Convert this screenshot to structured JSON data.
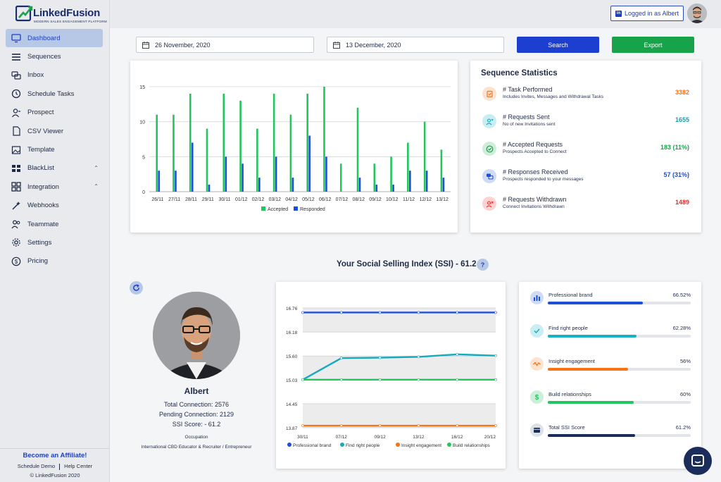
{
  "app": {
    "brand": "LinkedFusion",
    "tagline": "MODERN SALES ENGAGEMENT PLATFORM",
    "logged_in": "Logged in as Albert"
  },
  "sidebar": {
    "items": [
      {
        "label": "Dashboard",
        "icon": "monitor-icon",
        "active": true
      },
      {
        "label": "Sequences",
        "icon": "list-icon"
      },
      {
        "label": "Inbox",
        "icon": "chat-icon"
      },
      {
        "label": "Schedule Tasks",
        "icon": "clock-icon"
      },
      {
        "label": "Prospect",
        "icon": "person-icon"
      },
      {
        "label": "CSV Viewer",
        "icon": "file-icon"
      },
      {
        "label": "Template",
        "icon": "image-icon"
      },
      {
        "label": "BlackList",
        "icon": "blocks-icon",
        "expandable": true
      },
      {
        "label": "Integration",
        "icon": "grid-icon",
        "expandable": true
      },
      {
        "label": "Webhooks",
        "icon": "magic-icon"
      },
      {
        "label": "Teammate",
        "icon": "team-icon"
      },
      {
        "label": "Settings",
        "icon": "gear-icon"
      },
      {
        "label": "Pricing",
        "icon": "dollar-icon"
      }
    ],
    "affiliate": "Become an Affiliate!",
    "schedule_demo": "Schedule Demo",
    "help_center": "Help Center",
    "copyright": "© LinkedFusion 2020"
  },
  "filters": {
    "start_date": "26 November, 2020",
    "end_date": "13 December, 2020",
    "search_label": "Search",
    "export_label": "Export"
  },
  "colors": {
    "accepted": "#22c55e",
    "responded": "#1d4ed8",
    "search_btn": "#1d3fcf",
    "export_btn": "#16a34a"
  },
  "chart_data": [
    {
      "type": "bar",
      "categories": [
        "26/11",
        "27/11",
        "28/11",
        "29/11",
        "30/11",
        "01/12",
        "02/12",
        "03/12",
        "04/12",
        "05/12",
        "06/12",
        "07/12",
        "08/12",
        "09/12",
        "10/12",
        "11/12",
        "12/12",
        "13/12"
      ],
      "series": [
        {
          "name": "Accepted",
          "values": [
            11,
            11,
            14,
            9,
            14,
            13,
            9,
            14,
            11,
            14,
            15,
            4,
            12,
            4,
            5,
            7,
            10,
            6
          ]
        },
        {
          "name": "Responded",
          "values": [
            3,
            3,
            7,
            1,
            5,
            4,
            2,
            5,
            2,
            8,
            5,
            0,
            2,
            1,
            1,
            3,
            3,
            2
          ]
        }
      ],
      "yticks": [
        0,
        5,
        10,
        15
      ],
      "ylim": [
        0,
        15
      ],
      "legend": "bottom"
    },
    {
      "type": "line",
      "x": [
        "30/11",
        "07/12",
        "09/12",
        "13/12",
        "16/12",
        "20/12"
      ],
      "series": [
        {
          "name": "Professional brand",
          "values": [
            16.65,
            16.65,
            16.65,
            16.65,
            16.65,
            16.65
          ]
        },
        {
          "name": "Find right people",
          "values": [
            15.03,
            15.55,
            15.56,
            15.58,
            15.64,
            15.61
          ]
        },
        {
          "name": "Insight engagement",
          "values": [
            13.92,
            13.92,
            13.92,
            13.92,
            13.92,
            13.92
          ]
        },
        {
          "name": "Build relationships",
          "values": [
            15.03,
            15.03,
            15.03,
            15.03,
            15.03,
            15.03
          ]
        }
      ],
      "yticks": [
        13.87,
        14.45,
        15.03,
        15.6,
        16.18,
        16.76
      ],
      "ylim": [
        13.87,
        16.76
      ],
      "legend": "bottom"
    }
  ],
  "stats": {
    "title": "Sequence Statistics",
    "rows": [
      {
        "label": "# Task Performed",
        "sub": "Includes Invites, Messages and Withdrawal Tasks",
        "value": "3382",
        "color": "#f97316",
        "bg": "#fde3cf",
        "icon": "task-icon"
      },
      {
        "label": "# Requests Sent",
        "sub": "No of new Invitations sent",
        "value": "1655",
        "color": "#0ea5b7",
        "bg": "#c8eef3",
        "icon": "send-user-icon"
      },
      {
        "label": "# Accepted Requests",
        "sub": "Prospects Accepted to Connect",
        "value": "183 (11%)",
        "color": "#16a34a",
        "bg": "#cdeed8",
        "icon": "check-circle-icon"
      },
      {
        "label": "# Responses Received",
        "sub": "Prospects responded to your messages",
        "value": "57 (31%)",
        "color": "#1d4ed8",
        "bg": "#cfdaf5",
        "icon": "chat-bubble-icon"
      },
      {
        "label": "# Requests Withdrawn",
        "sub": "Connect Invitations Withdrawn",
        "value": "1489",
        "color": "#ef2b2b",
        "bg": "#fbd3d3",
        "icon": "remove-user-icon"
      }
    ]
  },
  "ssi": {
    "title": "Your Social Selling Index (SSI) - 61.2",
    "help": "?",
    "profile": {
      "name": "Albert",
      "total_connection": "Total Connection: 2576",
      "pending_connection": "Pending Connection: 2129",
      "ssi_score": "SSI Score: - 61.2",
      "occupation_label": "Occupation",
      "occupation": "International CBD Educator & Recruiter / Entrepreneur"
    },
    "metrics": [
      {
        "label": "Professional brand",
        "value": "66.52%",
        "fraction": 0.6652,
        "color": "#1d4ed8",
        "bg": "#cfdaf5",
        "icon": "bar-chart-icon"
      },
      {
        "label": "Find right people",
        "value": "62.28%",
        "fraction": 0.6228,
        "color": "#17b3c4",
        "bg": "#c8eef3",
        "icon": "check-icon"
      },
      {
        "label": "Insight engagement",
        "value": "56%",
        "fraction": 0.56,
        "color": "#f97316",
        "bg": "#fde3cf",
        "icon": "wave-icon"
      },
      {
        "label": "Build relationships",
        "value": "60%",
        "fraction": 0.6,
        "color": "#22c55e",
        "bg": "#cdeed8",
        "icon": "dollar-icon"
      },
      {
        "label": "Total SSI Score",
        "value": "61.2%",
        "fraction": 0.612,
        "color": "#1b2d5a",
        "bg": "#dde0e6",
        "icon": "card-icon"
      }
    ]
  }
}
